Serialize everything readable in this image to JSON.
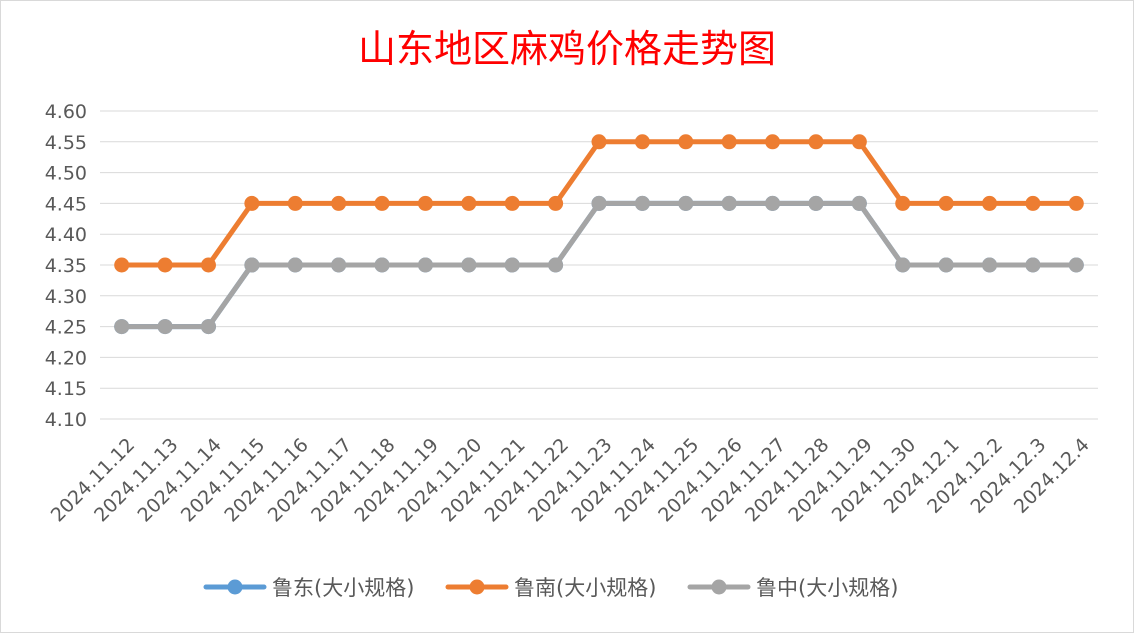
{
  "chart_data": {
    "type": "line",
    "title": "山东地区麻鸡价格走势图",
    "categories": [
      "2024.11.12",
      "2024.11.13",
      "2024.11.14",
      "2024.11.15",
      "2024.11.16",
      "2024.11.17",
      "2024.11.18",
      "2024.11.19",
      "2024.11.20",
      "2024.11.21",
      "2024.11.22",
      "2024.11.23",
      "2024.11.24",
      "2024.11.25",
      "2024.11.26",
      "2024.11.27",
      "2024.11.28",
      "2024.11.29",
      "2024.11.30",
      "2024.12.1",
      "2024.12.2",
      "2024.12.3",
      "2024.12.4"
    ],
    "y_ticks": [
      "4.10",
      "4.15",
      "4.20",
      "4.25",
      "4.30",
      "4.35",
      "4.40",
      "4.45",
      "4.50",
      "4.55",
      "4.60"
    ],
    "ylim": [
      4.1,
      4.6
    ],
    "grid": true,
    "legend_position": "bottom",
    "series": [
      {
        "name": "鲁东(大小规格)",
        "color": "#5b9bd5",
        "values": [
          4.25,
          4.25,
          4.25,
          4.35,
          4.35,
          4.35,
          4.35,
          4.35,
          4.35,
          4.35,
          4.35,
          4.45,
          4.45,
          4.45,
          4.45,
          4.45,
          4.45,
          4.45,
          4.35,
          4.35,
          4.35,
          4.35,
          4.35
        ]
      },
      {
        "name": "鲁南(大小规格)",
        "color": "#ed7d31",
        "values": [
          4.35,
          4.35,
          4.35,
          4.45,
          4.45,
          4.45,
          4.45,
          4.45,
          4.45,
          4.45,
          4.45,
          4.55,
          4.55,
          4.55,
          4.55,
          4.55,
          4.55,
          4.55,
          4.45,
          4.45,
          4.45,
          4.45,
          4.45
        ]
      },
      {
        "name": "鲁中(大小规格)",
        "color": "#a5a5a5",
        "values": [
          4.25,
          4.25,
          4.25,
          4.35,
          4.35,
          4.35,
          4.35,
          4.35,
          4.35,
          4.35,
          4.35,
          4.45,
          4.45,
          4.45,
          4.45,
          4.45,
          4.45,
          4.45,
          4.35,
          4.35,
          4.35,
          4.35,
          4.35
        ]
      }
    ]
  }
}
